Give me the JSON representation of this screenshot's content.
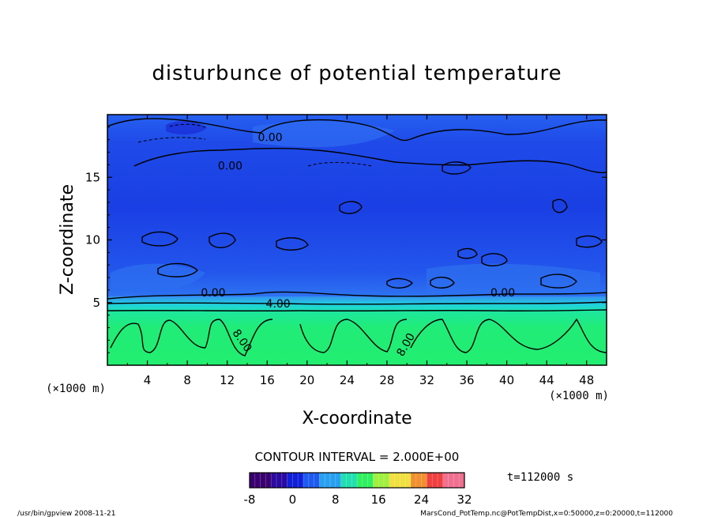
{
  "chart_data": {
    "type": "heatmap",
    "title": "disturbunce of potential temperature",
    "xlabel": "X-coordinate",
    "ylabel": "Z-coordinate",
    "x_unit_label": "(×1000 m)",
    "x_unit_label_right": "(×1000 m)",
    "xlim": [
      0,
      50
    ],
    "ylim": [
      0,
      20
    ],
    "x_ticks": [
      4,
      8,
      12,
      16,
      20,
      24,
      28,
      32,
      36,
      40,
      44,
      48
    ],
    "y_ticks": [
      5,
      10,
      15
    ],
    "contour_interval_text": "CONTOUR INTERVAL = 2.000E+00",
    "contour_labels": [
      {
        "text": "0.00",
        "x": 16.3,
        "z": 17.9
      },
      {
        "text": "0.00",
        "x": 12.3,
        "z": 15.6
      },
      {
        "text": "0.00",
        "x": 10.6,
        "z": 5.5
      },
      {
        "text": "0.00",
        "x": 39.6,
        "z": 5.5
      },
      {
        "text": "4.00",
        "x": 17.1,
        "z": 4.6
      },
      {
        "text": "8.00",
        "x": 13.2,
        "z": 1.8
      },
      {
        "text": "8.00",
        "x": 30.2,
        "z": 1.5
      }
    ],
    "regions": [
      {
        "z_range": [
          0,
          4.3
        ],
        "approx_value": 8,
        "description_color": "#22ee77"
      },
      {
        "z_range": [
          4.3,
          20
        ],
        "approx_value": -2,
        "description_color": "#2255ee"
      }
    ],
    "colorbar": {
      "ticks": [
        -8,
        0,
        8,
        16,
        24,
        32
      ],
      "range": [
        -8,
        32
      ],
      "colors": [
        "#3a0070",
        "#2a0aa0",
        "#1020d8",
        "#1e5af0",
        "#28a0f0",
        "#20e0b0",
        "#30f060",
        "#a0f040",
        "#f0e040",
        "#f09030",
        "#f04040",
        "#f07090"
      ]
    },
    "time_text": "t=112000 s"
  },
  "footer": {
    "left": "/usr/bin/gpview   2008-11-21",
    "right": "MarsCond_PotTemp.nc@PotTempDist,x=0:50000,z=0:20000,t=112000"
  }
}
